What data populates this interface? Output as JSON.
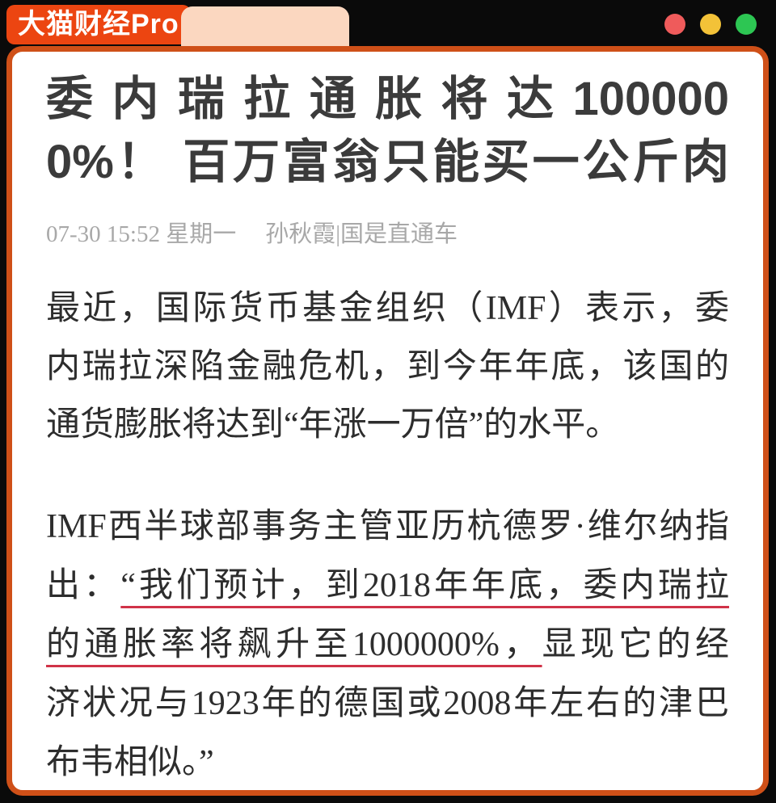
{
  "window": {
    "logo": "大猫财经Pro",
    "dot_colors": {
      "red": "#ef5b5b",
      "yellow": "#f3c238",
      "green": "#2dc653"
    },
    "accent_border": "#cf5018",
    "logo_bg": "#ec4511",
    "tab_bg": "#fbd7c0"
  },
  "article": {
    "title_lines": [
      "委内瑞拉通胀将达100000",
      "0%！ 百万富翁只能买一公斤肉"
    ],
    "datetime": "07-30 15:52 星期一",
    "author": "孙秋霞|国是直通车",
    "para1_lines": [
      "最近，国际货币基金组织（IMF）表示，委",
      "内瑞拉深陷金融危机，到今年年底，该国的",
      "通货膨胀将达到“年涨一万倍”的水平。"
    ],
    "para2_lines": [
      {
        "text": "IMF西半球部事务主管亚历杭德罗·维尔纳指"
      },
      {
        "pre": "出：",
        "u": "“我们预计，到2018年年底，委内瑞拉"
      },
      {
        "u": "的通胀率将飙升至1000000%，",
        "post": "显现它的经"
      },
      {
        "text": "济状况与1923年的德国或2008年左右的津巴"
      },
      {
        "text": "布韦相似。”"
      }
    ],
    "underline_color": "#d03348"
  }
}
